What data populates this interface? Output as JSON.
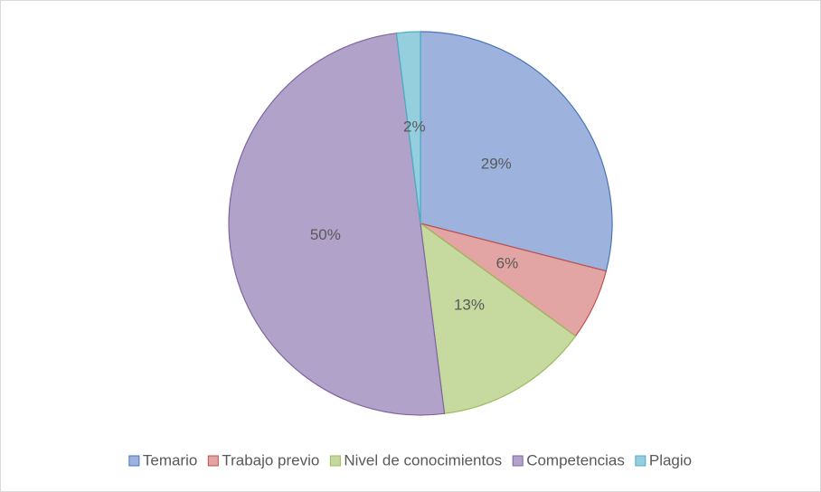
{
  "chart_data": {
    "type": "pie",
    "categories": [
      "Temario",
      "Trabajo previo",
      "Nivel de conocimientos",
      "Competencias",
      "Plagio"
    ],
    "values": [
      29,
      6,
      13,
      50,
      2
    ],
    "value_labels": [
      "29%",
      "6%",
      "13%",
      "50%",
      "2%"
    ],
    "colors": [
      "#9db3dd",
      "#e3a5a3",
      "#c6d99f",
      "#b0a2c8",
      "#95cfdd"
    ],
    "edge_colors": [
      "#4a74b8",
      "#c0504d",
      "#9bbb59",
      "#8064a2",
      "#4bacc6"
    ],
    "legend": "bottom"
  }
}
